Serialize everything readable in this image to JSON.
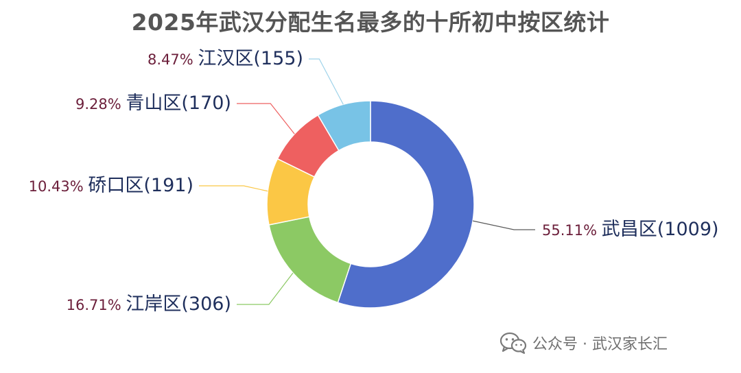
{
  "chart_data": {
    "type": "pie",
    "donut": true,
    "title": "2025年武汉分配生名最多的十所初中按区统计",
    "slices": [
      {
        "name": "武昌区",
        "value": 1009,
        "percent": "55.11%",
        "label": "武昌区(1009)",
        "color": "#4f6ecb"
      },
      {
        "name": "江岸区",
        "value": 306,
        "percent": "16.71%",
        "label": "江岸区(306)",
        "color": "#8cc964"
      },
      {
        "name": "硚口区",
        "value": 191,
        "percent": "10.43%",
        "label": "硚口区(191)",
        "color": "#fbc745"
      },
      {
        "name": "青山区",
        "value": 170,
        "percent": "9.28%",
        "label": "青山区(170)",
        "color": "#ee6060"
      },
      {
        "name": "江汉区",
        "value": 155,
        "percent": "8.47%",
        "label": "江汉区(155)",
        "color": "#78c3e6"
      }
    ]
  },
  "watermark": {
    "icon": "wechat-icon",
    "text": "公众号 · 武汉家长汇"
  }
}
